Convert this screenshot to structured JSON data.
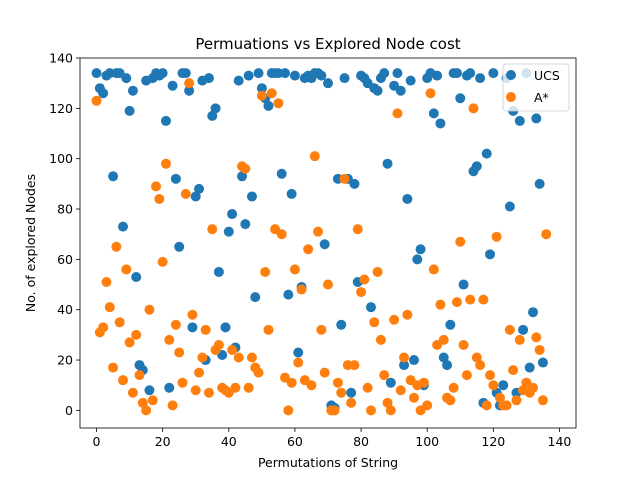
{
  "chart_data": {
    "type": "scatter",
    "title": "Permuations vs Explored Node cost",
    "xlabel": "Permutations of String",
    "ylabel": "No. of explored Nodes",
    "xlim": [
      -5,
      145
    ],
    "ylim": [
      -7,
      140
    ],
    "xticks": [
      0,
      20,
      40,
      60,
      80,
      100,
      120,
      140
    ],
    "yticks": [
      0,
      20,
      40,
      60,
      80,
      100,
      120,
      140
    ],
    "grid": false,
    "legend": "upper-right",
    "series": [
      {
        "name": "UCS",
        "color": "#1f77b4",
        "y": [
          134,
          128,
          126,
          133,
          134,
          93,
          134,
          134,
          73,
          132,
          119,
          127,
          53,
          18,
          16,
          131,
          8,
          132,
          134,
          133,
          134,
          115,
          9,
          129,
          92,
          65,
          134,
          134,
          127,
          33,
          85,
          88,
          131,
          20,
          132,
          117,
          120,
          55,
          22,
          33,
          71,
          78,
          25,
          131,
          93,
          74,
          133,
          85,
          45,
          134,
          128,
          124,
          121,
          134,
          134,
          134,
          94,
          134,
          46,
          86,
          133,
          23,
          49,
          132,
          133,
          132,
          134,
          134,
          133,
          66,
          130,
          2,
          1,
          92,
          34,
          132,
          92,
          7,
          90,
          51,
          133,
          132,
          130,
          41,
          128,
          127,
          132,
          134,
          98,
          11,
          129,
          134,
          127,
          18,
          84,
          131,
          20,
          60,
          64,
          10,
          132,
          134,
          118,
          133,
          114,
          21,
          18,
          34,
          134,
          134,
          124,
          50,
          133,
          134,
          95,
          97,
          132,
          3,
          102,
          62,
          134,
          7,
          2,
          10,
          132,
          81,
          119,
          7,
          115,
          32,
          134,
          17,
          39,
          116,
          90,
          19
        ]
      },
      {
        "name": "A*",
        "color": "#ff7f0e",
        "y": [
          123,
          31,
          33,
          51,
          41,
          17,
          65,
          35,
          12,
          56,
          27,
          7,
          30,
          14,
          3,
          0,
          40,
          4,
          89,
          84,
          59,
          98,
          28,
          2,
          34,
          23,
          11,
          86,
          130,
          38,
          8,
          15,
          21,
          32,
          7,
          72,
          24,
          26,
          9,
          8,
          7,
          24,
          9,
          21,
          97,
          96,
          9,
          21,
          17,
          15,
          125,
          55,
          32,
          126,
          72,
          122,
          70,
          13,
          0,
          11,
          56,
          19,
          48,
          12,
          64,
          10,
          101,
          71,
          32,
          15,
          50,
          0,
          0,
          11,
          7,
          92,
          18,
          3,
          18,
          72,
          47,
          52,
          9,
          0,
          35,
          55,
          28,
          14,
          3,
          0,
          36,
          118,
          8,
          21,
          38,
          12,
          5,
          10,
          0,
          11,
          2,
          126,
          56,
          26,
          42,
          28,
          5,
          4,
          9,
          43,
          67,
          26,
          14,
          44,
          120,
          21,
          18,
          44,
          2,
          14,
          10,
          69,
          5,
          2,
          2,
          32,
          16,
          4,
          28,
          8,
          11,
          7,
          9,
          29,
          24,
          4,
          70
        ]
      }
    ]
  }
}
